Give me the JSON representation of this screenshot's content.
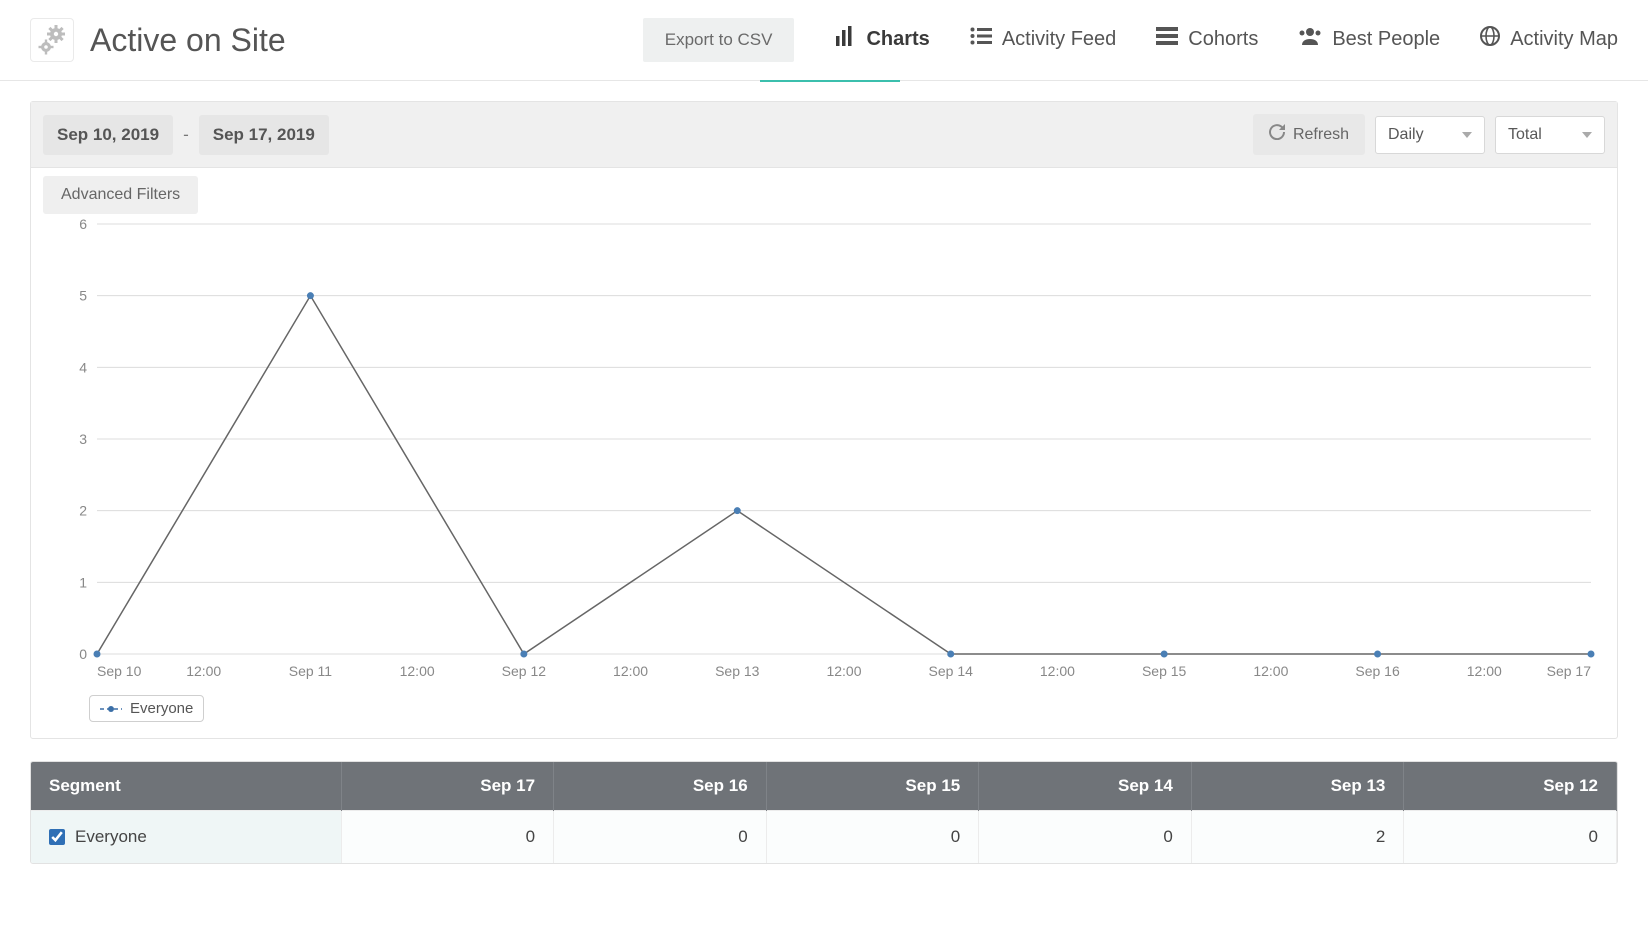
{
  "header": {
    "title": "Active on Site",
    "export_label": "Export to CSV",
    "nav": [
      {
        "label": "Charts",
        "icon": "bar-chart",
        "active": true
      },
      {
        "label": "Activity Feed",
        "icon": "list",
        "active": false
      },
      {
        "label": "Cohorts",
        "icon": "layers",
        "active": false
      },
      {
        "label": "Best People",
        "icon": "people",
        "active": false
      },
      {
        "label": "Activity Map",
        "icon": "globe",
        "active": false
      }
    ]
  },
  "toolbar": {
    "date_start": "Sep 10, 2019",
    "date_end": "Sep 17, 2019",
    "refresh_label": "Refresh",
    "interval_select": "Daily",
    "aggregate_select": "Total",
    "advanced_filters_label": "Advanced Filters"
  },
  "chart": {
    "type": "line",
    "ylim": [
      0,
      6
    ],
    "ytick_step": 1,
    "x_labels": [
      "Sep 10",
      "12:00",
      "Sep 11",
      "12:00",
      "Sep 12",
      "12:00",
      "Sep 13",
      "12:00",
      "Sep 14",
      "12:00",
      "Sep 15",
      "12:00",
      "Sep 16",
      "12:00",
      "Sep 17"
    ],
    "series": {
      "name": "Everyone",
      "color_line": "#666666",
      "color_marker": "#4a7fb5",
      "marker_radius": 3,
      "points": [
        {
          "x": 0,
          "y": 0
        },
        {
          "x": 2,
          "y": 5
        },
        {
          "x": 4,
          "y": 0
        },
        {
          "x": 6,
          "y": 2
        },
        {
          "x": 8,
          "y": 0
        },
        {
          "x": 10,
          "y": 0
        },
        {
          "x": 12,
          "y": 0
        },
        {
          "x": 14,
          "y": 0
        }
      ]
    },
    "grid_color": "#dcdcdc",
    "background_color": "#ffffff",
    "legend_label": "Everyone"
  },
  "table": {
    "columns": [
      "Segment",
      "Sep 17",
      "Sep 16",
      "Sep 15",
      "Sep 14",
      "Sep 13",
      "Sep 12"
    ],
    "rows": [
      {
        "segment": "Everyone",
        "checked": true,
        "values": [
          0,
          0,
          0,
          0,
          2,
          0
        ]
      }
    ]
  }
}
